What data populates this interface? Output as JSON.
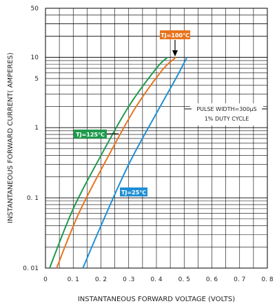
{
  "chart_data": {
    "type": "line",
    "xlabel": "INSTANTANEOUS FORWARD VOLTAGE (VOLTS)",
    "ylabel": "INSTANTANEOUS FORWARD CURRENT( AMPERES)",
    "xlim": [
      0,
      0.8
    ],
    "ylim": [
      0.01,
      50
    ],
    "yscale": "log",
    "x_ticks": [
      0,
      0.1,
      0.2,
      0.3,
      0.4,
      0.5,
      0.6,
      0.7,
      0.8
    ],
    "x_tick_labels": [
      "0",
      "0. 1",
      "0. 2",
      "0 .3",
      "0. 4",
      "0. 5",
      "0. 6",
      "0. 7",
      "0. 8"
    ],
    "y_ticks": [
      0.01,
      0.1,
      1,
      5,
      10,
      50
    ],
    "y_tick_labels": [
      "0. 01",
      "0. 1",
      "1",
      "5",
      "10",
      "50"
    ],
    "grid": true,
    "annotation_lines": [
      "PULSE WIDTH=300μS",
      "1% DUTY CYCLE"
    ],
    "series": [
      {
        "name": "TJ=125℃",
        "color": "#1e9a4c",
        "x": [
          0.015,
          0.1,
          0.2,
          0.3,
          0.4,
          0.44
        ],
        "y": [
          0.01,
          0.07,
          0.4,
          2,
          7,
          10
        ]
      },
      {
        "name": "TJ=100℃",
        "color": "#e8731e",
        "x": [
          0.04,
          0.12,
          0.22,
          0.32,
          0.42,
          0.47
        ],
        "y": [
          0.01,
          0.06,
          0.35,
          1.8,
          6.5,
          10
        ]
      },
      {
        "name": "TJ=25℃",
        "color": "#1e8fd6",
        "x": [
          0.135,
          0.2,
          0.3,
          0.4,
          0.47,
          0.51
        ],
        "y": [
          0.01,
          0.04,
          0.3,
          1.6,
          5,
          10
        ]
      }
    ]
  }
}
